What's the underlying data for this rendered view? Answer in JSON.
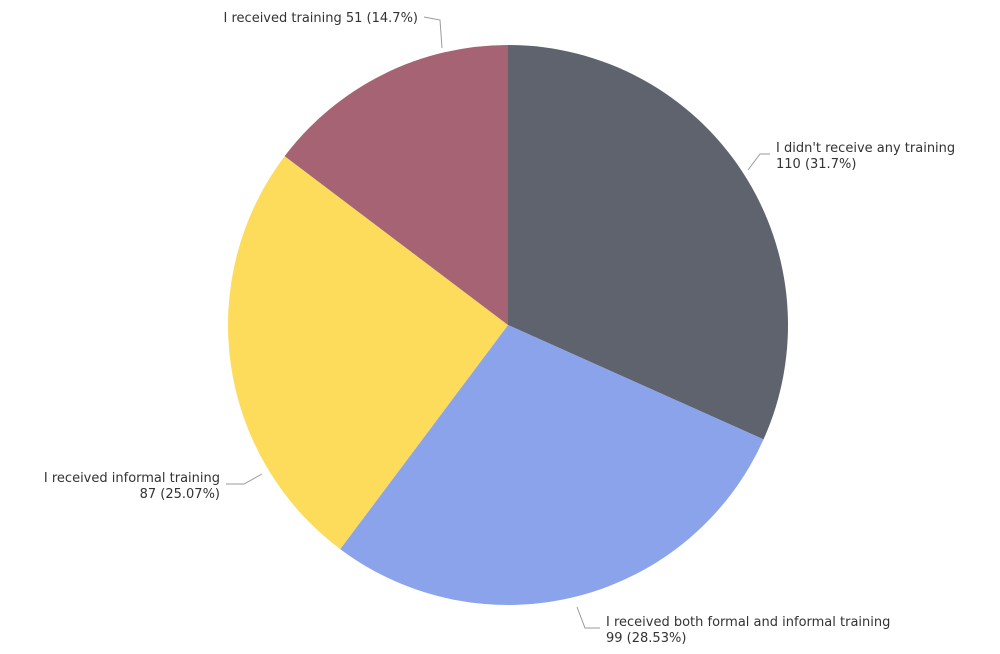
{
  "chart_data": {
    "type": "pie",
    "title": "",
    "legend": "none",
    "slices": [
      {
        "name": "I didn't receive any training",
        "value": 110,
        "label_line1": "I didn't receive any training",
        "label_line2": "110 (31.7%)",
        "color": "#5e636e"
      },
      {
        "name": "I received both formal and informal training",
        "value": 99,
        "label_line1": "I received both formal and informal training",
        "label_line2": "99 (28.53%)",
        "color": "#8aa3ea"
      },
      {
        "name": "I received informal training",
        "value": 87,
        "label_line1": "I received informal training",
        "label_line2": "87 (25.07%)",
        "color": "#fddc5c"
      },
      {
        "name": "I received training",
        "value": 51,
        "label_line1": "I received training 51 (14.7%)",
        "label_line2": "",
        "color": "#a56374"
      }
    ]
  }
}
